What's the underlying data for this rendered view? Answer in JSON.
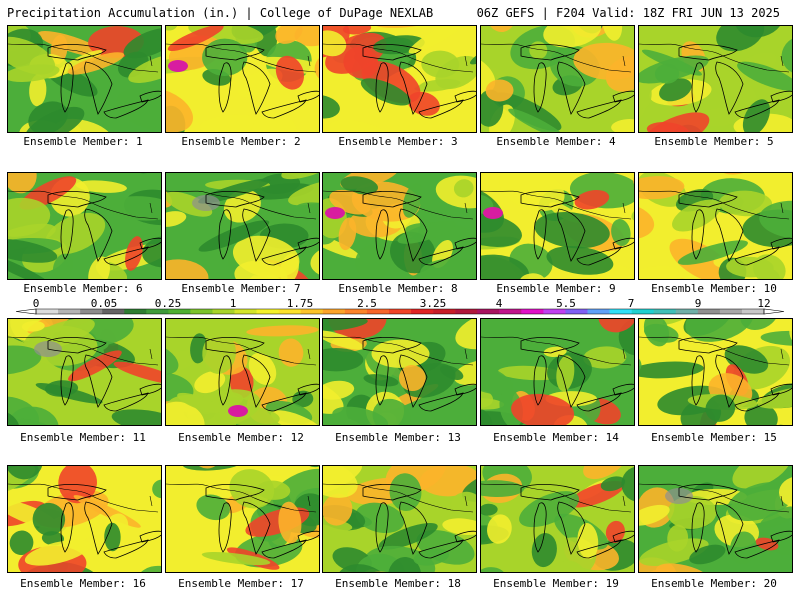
{
  "header": {
    "title": "Precipitation Accumulation (in.) | College of DuPage NEXLAB",
    "run_info": "06Z GEFS | F204 Valid: 18Z FRI JUN 13 2025"
  },
  "member_label_prefix": "Ensemble Member: ",
  "members": [
    1,
    2,
    3,
    4,
    5,
    6,
    7,
    8,
    9,
    10,
    11,
    12,
    13,
    14,
    15,
    16,
    17,
    18,
    19,
    20
  ],
  "colorbar": {
    "tick_labels": [
      "0",
      "0.05",
      "0.25",
      "1",
      "1.75",
      "2.5",
      "3.25",
      "4",
      "5.5",
      "7",
      "9",
      "12"
    ],
    "colors": [
      "#dcdcdc",
      "#b4b4b4",
      "#8c8c8c",
      "#646464",
      "#2e7d32",
      "#3f9b3a",
      "#4fb032",
      "#7cc42c",
      "#a8d42a",
      "#d4e62a",
      "#f4f22a",
      "#fce22a",
      "#fcc42a",
      "#fca42a",
      "#fc842a",
      "#f8642a",
      "#f04428",
      "#e02424",
      "#c81e28",
      "#b0183c",
      "#a81460",
      "#c0148c",
      "#e010c8",
      "#c040f0",
      "#8060f4",
      "#60a0f8",
      "#30e0f8",
      "#20d0d0",
      "#40c0b8",
      "#70b0a8",
      "#909090",
      "#a8a8a8",
      "#c8c8c8"
    ]
  },
  "palette": {
    "green_dark": "#2e8b2e",
    "green": "#4cae3a",
    "yellow_green": "#a8d42a",
    "yellow": "#f2ee2e",
    "orange": "#fcb42a",
    "red": "#f0442a",
    "magenta": "#d81ca0",
    "gray": "#909090"
  }
}
